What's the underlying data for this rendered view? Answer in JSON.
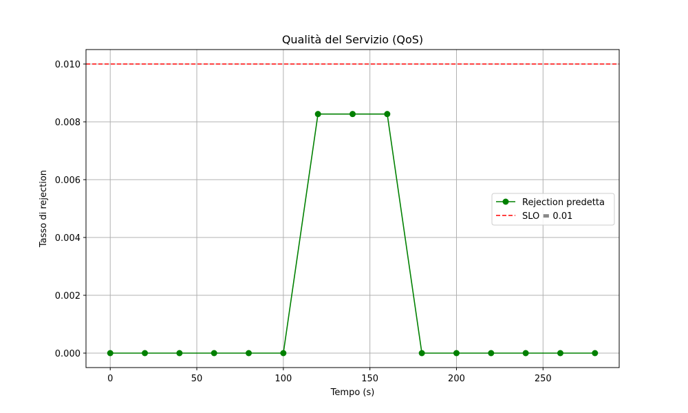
{
  "chart_data": {
    "type": "line",
    "title": "Qualità del Servizio (QoS)",
    "xlabel": "Tempo (s)",
    "ylabel": "Tasso di rejection",
    "xlim": [
      -14,
      294
    ],
    "ylim": [
      -0.0005,
      0.0105
    ],
    "x_ticks": [
      0,
      50,
      100,
      150,
      200,
      250
    ],
    "y_ticks": [
      0.0,
      0.002,
      0.004,
      0.006,
      0.008,
      0.01
    ],
    "y_tick_labels": [
      "0.000",
      "0.002",
      "0.004",
      "0.006",
      "0.008",
      "0.010"
    ],
    "grid": true,
    "legend_position": "center-right",
    "series": [
      {
        "name": "Rejection predetta",
        "color": "#008000",
        "style": "solid",
        "marker": "circle",
        "x": [
          0,
          20,
          40,
          60,
          80,
          100,
          120,
          140,
          160,
          180,
          200,
          220,
          240,
          260,
          280
        ],
        "y": [
          0,
          0,
          0,
          0,
          0,
          0,
          0.00827,
          0.00827,
          0.00827,
          0,
          0,
          0,
          0,
          0,
          0
        ]
      }
    ],
    "reference_lines": [
      {
        "name": "SLO = 0.01",
        "y": 0.01,
        "color": "#ff0000",
        "style": "dashed"
      }
    ]
  }
}
